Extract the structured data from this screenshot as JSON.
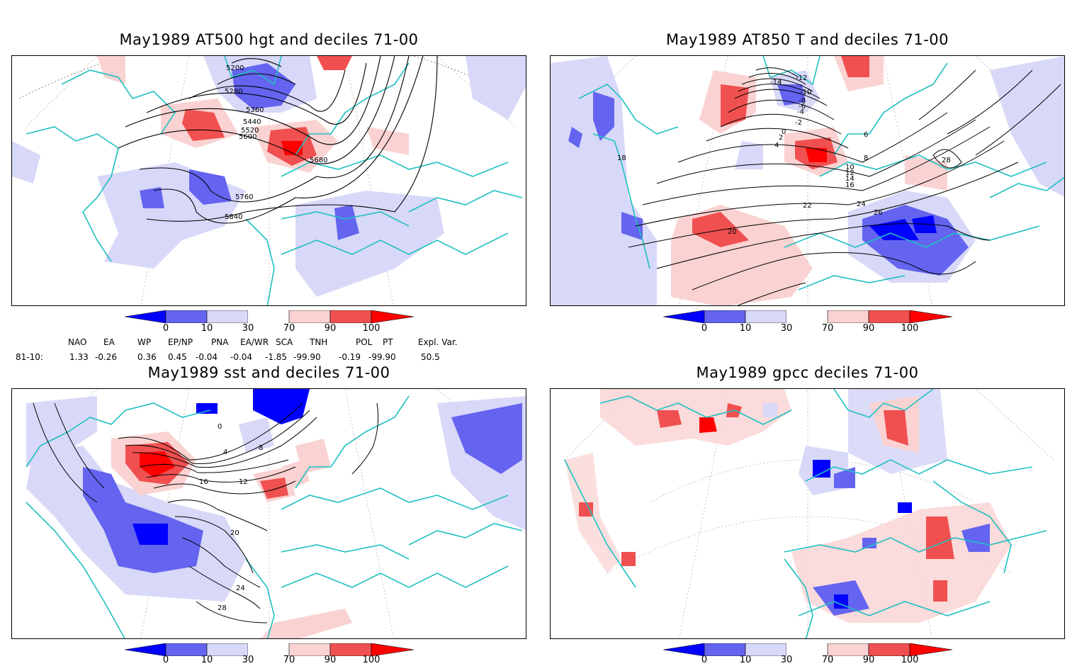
{
  "panels": [
    {
      "id": "p1",
      "title": "May1989 AT500 hgt and deciles 71-00",
      "contour_labels": [
        "5200",
        "5280",
        "5360",
        "5440",
        "5520",
        "5600",
        "5680",
        "5760",
        "5840"
      ]
    },
    {
      "id": "p2",
      "title": "May1989 AT850 T and deciles 71-00",
      "contour_labels": [
        "-14",
        "-12",
        "-10",
        "-8",
        "-6",
        "-4",
        "-2",
        "0",
        "2",
        "4",
        "6",
        "8",
        "10",
        "12",
        "14",
        "16",
        "18",
        "20",
        "22",
        "24",
        "26",
        "28"
      ]
    },
    {
      "id": "p3",
      "title": "May1989 sst and deciles 71-00",
      "contour_labels": [
        "0",
        "4",
        "8",
        "12",
        "16",
        "20",
        "24",
        "28"
      ]
    },
    {
      "id": "p4",
      "title": "May1989 gpcc deciles 71-00",
      "contour_labels": []
    }
  ],
  "colorbar": {
    "tick_labels": [
      "0",
      "10",
      "30",
      "70",
      "90",
      "100"
    ],
    "colors": [
      "#0000ff",
      "#6464f0",
      "#d8d8f8",
      "#ffffff",
      "#fad2d2",
      "#f05050",
      "#ff0000"
    ]
  },
  "indices": {
    "header": [
      "NAO",
      "EA",
      "WP",
      "EP/NP",
      "PNA",
      "EA/WR",
      "SCA",
      "TNH",
      "POL",
      "PT",
      "Expl. Var."
    ],
    "row_label": "81-10:",
    "values": [
      "1.33",
      "-0.26",
      "0.36",
      "0.45",
      "-0.04",
      "-0.04",
      "-1.85",
      "-99.90",
      "-0.19",
      "-99.90",
      "50.5"
    ]
  }
}
